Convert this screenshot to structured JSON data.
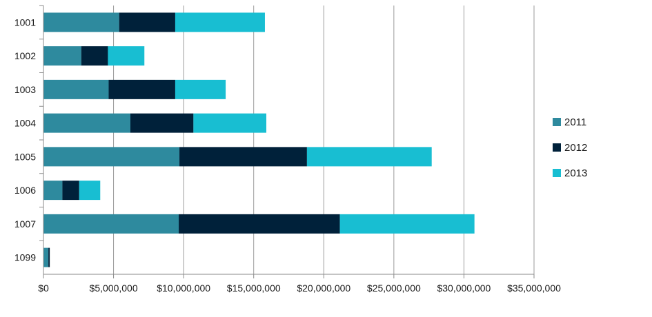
{
  "chart_data": {
    "type": "bar",
    "orientation": "horizontal",
    "stacked": true,
    "categories": [
      "1001",
      "1002",
      "1003",
      "1004",
      "1005",
      "1006",
      "1007",
      "1099"
    ],
    "series": [
      {
        "name": "2011",
        "color": "#2e8a9e",
        "values": [
          5400000,
          2700000,
          4650000,
          6200000,
          9700000,
          1350000,
          9650000,
          350000
        ]
      },
      {
        "name": "2012",
        "color": "#00213a",
        "values": [
          4000000,
          1900000,
          4750000,
          4500000,
          9100000,
          1200000,
          11500000,
          100000
        ]
      },
      {
        "name": "2013",
        "color": "#18bed2",
        "values": [
          6400000,
          2600000,
          3600000,
          5200000,
          8900000,
          1500000,
          9600000,
          0
        ]
      }
    ],
    "x_ticks": [
      "$0",
      "$5,000,000",
      "$10,000,000",
      "$15,000,000",
      "$20,000,000",
      "$25,000,000",
      "$30,000,000",
      "$35,000,000"
    ],
    "xlim": [
      0,
      35000000
    ],
    "x_tick_step": 5000000,
    "grid": "vertical",
    "legend_position": "right",
    "title": "",
    "xlabel": "",
    "ylabel": ""
  }
}
